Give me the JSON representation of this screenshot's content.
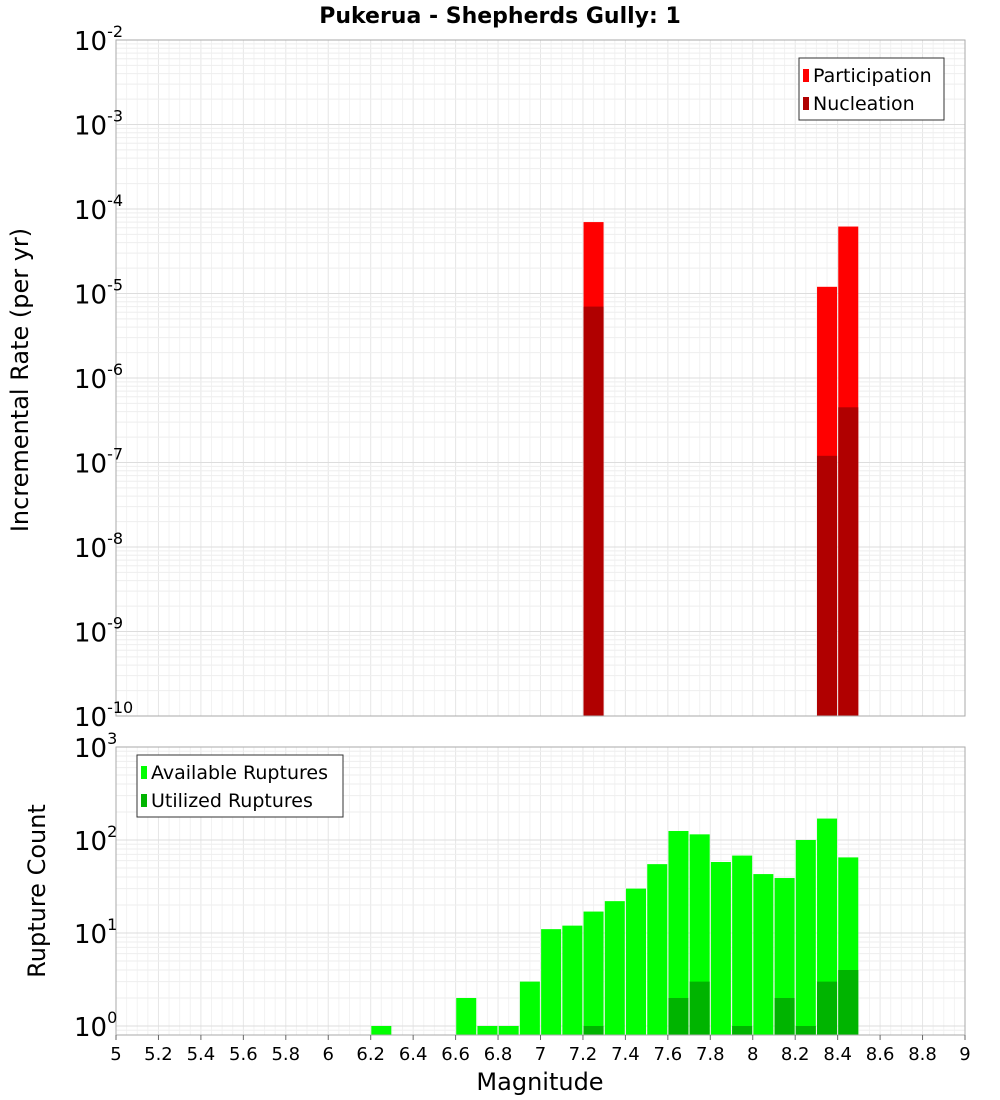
{
  "chart_data": [
    {
      "type": "bar",
      "title": "Pukerua - Shepherds Gully: 1",
      "xlabel": "",
      "ylabel": "Incremental Rate (per yr)",
      "yscale": "log",
      "ylim": [
        1e-10,
        0.01
      ],
      "y_tick_exponents": [
        "-2",
        "-3",
        "-4",
        "-5",
        "-6",
        "-7",
        "-8",
        "-9",
        "-10"
      ],
      "y_tick_base": "10",
      "xlim": [
        5,
        9
      ],
      "grid": true,
      "legend_position": "top-right",
      "series": [
        {
          "name": "Participation",
          "color": "#ff0000",
          "x": [
            7.25,
            8.35,
            8.45
          ],
          "values": [
            7e-05,
            1.2e-05,
            6.2e-05
          ]
        },
        {
          "name": "Nucleation",
          "color": "#b00000",
          "x": [
            7.25,
            8.35,
            8.45
          ],
          "values": [
            7e-06,
            1.2e-07,
            4.5e-07
          ]
        }
      ]
    },
    {
      "type": "bar",
      "title": "",
      "xlabel": "Magnitude",
      "ylabel": "Rupture Count",
      "yscale": "log",
      "ylim": [
        0.8,
        1000
      ],
      "y_tick_exponents": [
        "3",
        "2",
        "1",
        "0"
      ],
      "y_tick_base": "10",
      "xlim": [
        5,
        9
      ],
      "x_ticks": [
        "5",
        "5.2",
        "5.4",
        "5.6",
        "5.8",
        "6",
        "6.2",
        "6.4",
        "6.6",
        "6.8",
        "7",
        "7.2",
        "7.4",
        "7.6",
        "7.8",
        "8",
        "8.2",
        "8.4",
        "8.6",
        "8.8",
        "9"
      ],
      "grid": true,
      "legend_position": "top-left",
      "series": [
        {
          "name": "Available Ruptures",
          "color": "#00ff00",
          "x": [
            6.25,
            6.65,
            6.75,
            6.85,
            6.95,
            7.05,
            7.15,
            7.25,
            7.35,
            7.45,
            7.55,
            7.65,
            7.75,
            7.85,
            7.95,
            8.05,
            8.15,
            8.25,
            8.35,
            8.45
          ],
          "values": [
            1,
            2,
            1,
            1,
            3,
            11,
            12,
            17,
            22,
            30,
            55,
            125,
            115,
            58,
            68,
            43,
            39,
            100,
            170,
            65
          ]
        },
        {
          "name": "Utilized Ruptures",
          "color": "#00b400",
          "x": [
            7.25,
            7.65,
            7.75,
            7.95,
            8.15,
            8.25,
            8.35,
            8.45
          ],
          "values": [
            1,
            2,
            3,
            1,
            2,
            1,
            3,
            4
          ]
        }
      ]
    }
  ]
}
